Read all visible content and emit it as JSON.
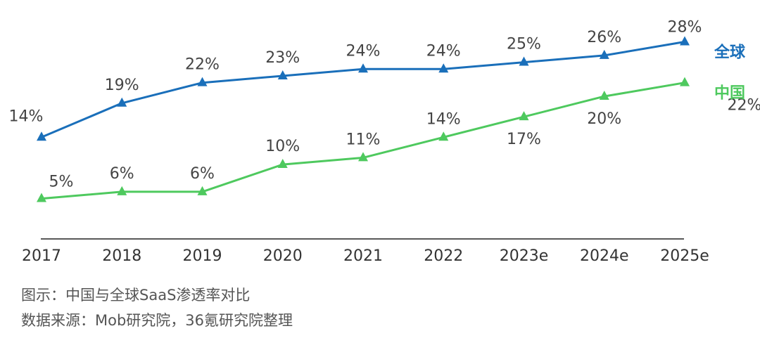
{
  "chart_data": {
    "type": "line",
    "categories": [
      "2017",
      "2018",
      "2019",
      "2020",
      "2021",
      "2022",
      "2023e",
      "2024e",
      "2025e"
    ],
    "ylim": [
      0,
      30
    ],
    "grid": false,
    "legend_placement": "right-end-of-lines",
    "series": [
      {
        "name": "全球",
        "color": "#1a6fba",
        "marker": "triangle",
        "values": [
          14,
          19,
          22,
          23,
          24,
          24,
          25,
          26,
          28
        ],
        "labels": [
          "14%",
          "19%",
          "22%",
          "23%",
          "24%",
          "24%",
          "25%",
          "26%",
          "28%"
        ]
      },
      {
        "name": "中国",
        "color": "#4ec95e",
        "marker": "triangle",
        "values": [
          5,
          6,
          6,
          10,
          11,
          14,
          17,
          20,
          22
        ],
        "labels": [
          "5%",
          "6%",
          "6%",
          "10%",
          "11%",
          "14%",
          "17%",
          "20%",
          "22%"
        ]
      }
    ]
  },
  "captions": {
    "figure": "图示：中国与全球SaaS渗透率对比",
    "source": "数据来源：Mob研究院，36氪研究院整理"
  }
}
